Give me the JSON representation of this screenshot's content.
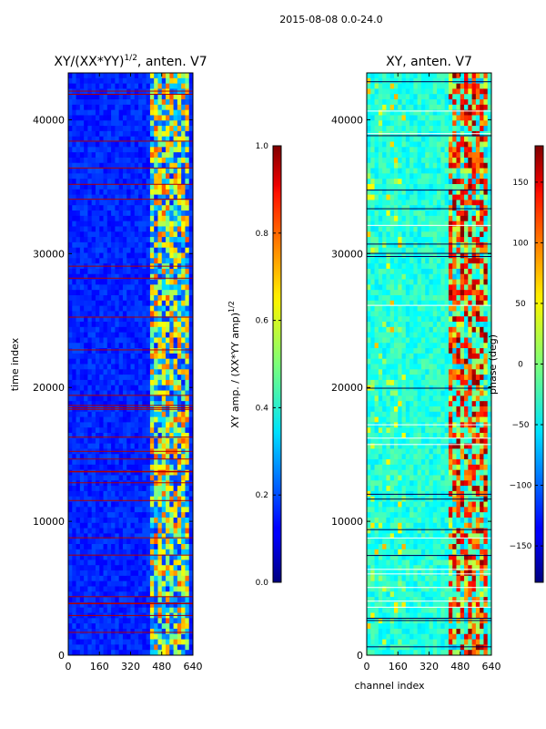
{
  "suptitle": "2015-08-08 0.0-24.0",
  "chart_data": [
    {
      "type": "heatmap",
      "title": "XY/(XX*YY)",
      "title_sup": "1/2",
      "title_suffix": ", anten. V7",
      "xlabel": "",
      "ylabel": "time index",
      "xlim": [
        0,
        640
      ],
      "ylim": [
        0,
        43500
      ],
      "xticks": [
        0,
        160,
        320,
        480,
        640
      ],
      "yticks": [
        0,
        10000,
        20000,
        30000,
        40000
      ],
      "colorbar": {
        "label": "XY amp. / (XX*YY amp)",
        "label_sup": "1/2",
        "range": [
          0.0,
          1.0
        ],
        "ticks": [
          "0.0",
          "0.2",
          "0.4",
          "0.6",
          "0.8",
          "1.0"
        ],
        "colormap": "jet"
      }
    },
    {
      "type": "heatmap",
      "title": "XY, anten. V7",
      "xlabel": "channel index",
      "ylabel": "",
      "xlim": [
        0,
        640
      ],
      "ylim": [
        0,
        43500
      ],
      "xticks": [
        0,
        160,
        320,
        480,
        640
      ],
      "yticks": [
        0,
        10000,
        20000,
        30000,
        40000
      ],
      "colorbar": {
        "label": "phase (deg)",
        "range": [
          -180,
          180
        ],
        "ticks": [
          "150",
          "100",
          "50",
          "0",
          "−50",
          "−100",
          "−150"
        ],
        "tick_values": [
          150,
          100,
          50,
          0,
          -50,
          -100,
          -150
        ],
        "colormap": "jet"
      }
    }
  ]
}
